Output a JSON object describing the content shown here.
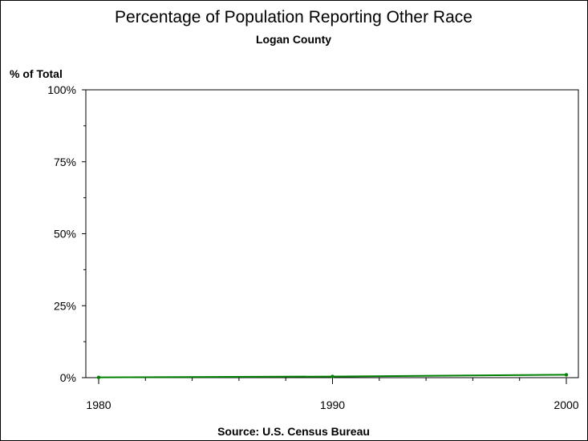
{
  "chart_data": {
    "type": "line",
    "title": "Percentage of Population Reporting Other Race",
    "subtitle": "Logan County",
    "ylabel": "% of Total",
    "xlabel": "",
    "footer": "Source: U.S. Census Bureau",
    "x_ticks": [
      {
        "value": 1980,
        "label": "1980"
      },
      {
        "value": 1990,
        "label": "1990"
      },
      {
        "value": 2000,
        "label": "2000"
      }
    ],
    "y_ticks": [
      {
        "value": 0,
        "label": "0%"
      },
      {
        "value": 25,
        "label": "25%"
      },
      {
        "value": 50,
        "label": "50%"
      },
      {
        "value": 75,
        "label": "75%"
      },
      {
        "value": 100,
        "label": "100%"
      }
    ],
    "xlim": [
      1980,
      2000
    ],
    "ylim": [
      0,
      100
    ],
    "grid": false,
    "series": [
      {
        "color": "#008000",
        "points": [
          {
            "x": 1980,
            "y": 0.1
          },
          {
            "x": 1990,
            "y": 0.4
          },
          {
            "x": 2000,
            "y": 1.0
          }
        ]
      }
    ]
  }
}
